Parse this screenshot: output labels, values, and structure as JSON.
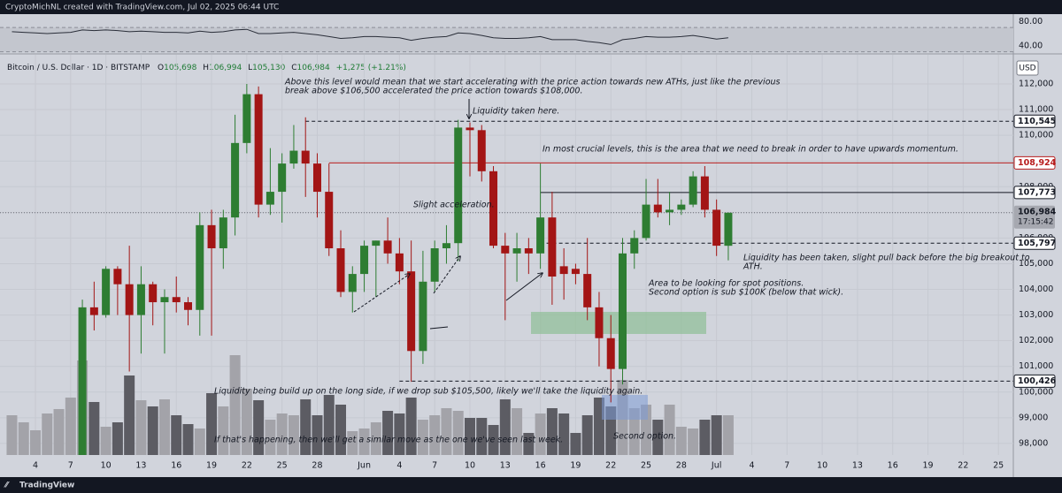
{
  "header": "CryptoMichNL created with TradingView.com, Jul 02, 2025 06:44 UTC",
  "footer": "TradingView",
  "chart_data": {
    "type": "candlestick",
    "title": "Bitcoin / U.S. Dollar · 1D · BITSTAMP",
    "ohlc_legend": [
      {
        "label": "O",
        "value": "105,698"
      },
      {
        "label": "H",
        "value": "106,994"
      },
      {
        "label": "L",
        "value": "105,130"
      },
      {
        "label": "C",
        "value": "106,984"
      }
    ],
    "change": "+1,275 (+1.21%)",
    "currency": "USD",
    "categories": [
      null,
      null,
      "4",
      null,
      null,
      "7",
      null,
      null,
      "10",
      null,
      null,
      "13",
      null,
      null,
      "16",
      null,
      null,
      "19",
      null,
      null,
      "22",
      null,
      null,
      "25",
      null,
      null,
      "28",
      null,
      null,
      null,
      "Jun",
      null,
      null,
      "4",
      null,
      null,
      "7",
      null,
      null,
      "10",
      null,
      null,
      "13",
      null,
      null,
      "16",
      null,
      null,
      "19",
      null,
      null,
      "22",
      null,
      null,
      "25",
      null,
      null,
      "28",
      null,
      null,
      "Jul",
      null
    ],
    "xticks_future": [
      "4",
      "7",
      "10",
      "13",
      "16",
      "19",
      "22",
      "25"
    ],
    "open": [
      null,
      null,
      null,
      null,
      null,
      null,
      97000,
      103300,
      103000,
      104800,
      104200,
      103000,
      104200,
      103500,
      103700,
      103500,
      103200,
      106500,
      105600,
      106800,
      109700,
      111600,
      107300,
      107800,
      108900,
      109400,
      108900,
      107800,
      105600,
      103900,
      104600,
      105700,
      105900,
      105400,
      104700,
      101600,
      104300,
      105600,
      105800,
      110300,
      110200,
      108600,
      105700,
      105400,
      105600,
      105400,
      106800,
      104900,
      104800,
      104600,
      103300,
      102100,
      100900,
      105400,
      106000,
      107300,
      107000,
      107100,
      107300,
      108400,
      107100,
      105698
    ],
    "high": [
      null,
      null,
      null,
      null,
      null,
      null,
      103600,
      104300,
      104900,
      104900,
      105700,
      104900,
      104300,
      104000,
      104500,
      103700,
      107000,
      107100,
      107100,
      110800,
      112000,
      111900,
      109500,
      109300,
      110400,
      110700,
      109300,
      108900,
      106300,
      104900,
      105900,
      105900,
      106800,
      106000,
      105900,
      105500,
      105900,
      106500,
      110600,
      110500,
      110400,
      108800,
      106200,
      106200,
      106000,
      108900,
      107800,
      105600,
      105000,
      106000,
      103900,
      103000,
      106000,
      106300,
      108300,
      108300,
      107800,
      107500,
      108600,
      108800,
      107500,
      106994
    ],
    "low": [
      null,
      null,
      null,
      null,
      null,
      null,
      96900,
      102400,
      102900,
      103000,
      100800,
      101500,
      102600,
      101500,
      103100,
      102600,
      102200,
      102200,
      104800,
      106100,
      109300,
      106800,
      106900,
      106600,
      108700,
      107600,
      106800,
      105300,
      103700,
      103100,
      103900,
      103700,
      105000,
      104200,
      100400,
      101100,
      103900,
      105000,
      105100,
      108400,
      108200,
      105600,
      102800,
      104300,
      104600,
      104800,
      103400,
      103600,
      104200,
      102800,
      101000,
      99600,
      100300,
      104800,
      105900,
      106800,
      106500,
      106900,
      107200,
      106800,
      105300,
      105130
    ],
    "close": [
      null,
      null,
      null,
      null,
      null,
      null,
      103300,
      103000,
      104800,
      104200,
      103000,
      104200,
      103500,
      103700,
      103500,
      103200,
      106500,
      105600,
      106800,
      109700,
      111600,
      107300,
      107800,
      108900,
      109400,
      108900,
      107800,
      105600,
      103900,
      104600,
      105700,
      105900,
      105400,
      104700,
      101600,
      104300,
      105600,
      105800,
      110300,
      110200,
      108600,
      105700,
      105400,
      105600,
      105400,
      106800,
      104500,
      104600,
      104600,
      103300,
      102100,
      100900,
      105400,
      106000,
      107300,
      107000,
      107100,
      107300,
      108400,
      107100,
      105700,
      106984
    ],
    "up_color": "#2e7d32",
    "down_color": "#a31515",
    "volume": [
      45,
      37,
      28,
      47,
      52,
      65,
      107,
      60,
      32,
      37,
      90,
      62,
      55,
      63,
      45,
      35,
      30,
      70,
      55,
      113,
      75,
      62,
      40,
      47,
      45,
      63,
      45,
      68,
      57,
      27,
      30,
      37,
      50,
      47,
      65,
      40,
      45,
      53,
      50,
      42,
      42,
      34,
      63,
      53,
      25,
      47,
      53,
      47,
      25,
      45,
      65,
      55,
      85,
      53,
      57,
      40,
      57,
      32,
      30,
      40,
      45,
      45
    ],
    "volume_ylim": [
      0,
      400
    ],
    "volume_up_color": "#a3a3a9",
    "volume_down_color": "#5c5c63",
    "ylim": [
      97550,
      113135
    ],
    "yticks": [
      {
        "value": 98000,
        "label": "98,000"
      },
      {
        "value": 99000,
        "label": "99,000"
      },
      {
        "value": 100000,
        "label": "100,000"
      },
      {
        "value": 101000,
        "label": "101,000"
      },
      {
        "value": 102000,
        "label": "102,000"
      },
      {
        "value": 103000,
        "label": "103,000"
      },
      {
        "value": 104000,
        "label": "104,000"
      },
      {
        "value": 105000,
        "label": "105,000"
      },
      {
        "value": 106000,
        "label": "106,000"
      },
      {
        "value": 107000,
        "label": "107,000"
      },
      {
        "value": 108000,
        "label": "108,000"
      },
      {
        "value": 109000,
        "label": "109,000"
      },
      {
        "value": 110000,
        "label": "110,000"
      },
      {
        "value": 111000,
        "label": "111,000"
      },
      {
        "value": 112000,
        "label": "112,000"
      }
    ],
    "grid": true,
    "levels": [
      {
        "value": 110545,
        "label": "110,545",
        "style": "dashed",
        "color": "#131722",
        "start": 25
      },
      {
        "value": 108924,
        "label": "108,924",
        "style": "solid",
        "color": "#b71c1c",
        "start": 27
      },
      {
        "value": 107773,
        "label": "107,773",
        "style": "solid",
        "color": "#131722",
        "start": 45
      },
      {
        "value": 105797,
        "label": "105,797",
        "style": "dashed",
        "color": "#131722",
        "start": 45
      },
      {
        "value": 100426,
        "label": "100,426",
        "style": "dashed",
        "color": "#131722",
        "start": 33
      }
    ],
    "last_price": {
      "value": 106984,
      "label": "106,984",
      "countdown": "17:15:42"
    },
    "annotations": [
      "Above this level would mean that we start accelerating with the price action towards new ATHs, just like the previous",
      "break above $106,500 accelerated the price action towards $108,000.",
      "Liquidity taken here.",
      "In most crucial levels, this is the area that we need to break in order to have upwards momentum.",
      "Slight acceleration.",
      "Liquidity has been taken, slight pull back before the big breakout to",
      "ATH.",
      "Area to be looking for spot positions.",
      "Second option is sub $100K (below that wick).",
      "Liquidity being build up on the long side, if we drop sub $105,500, likely we'll take the liquidity again.",
      "If that's happening, then we'll get a similar move as the one we've seen last week.",
      "Second option."
    ],
    "rsi": {
      "values": [
        63,
        62,
        61,
        60,
        61,
        62,
        66,
        65,
        66,
        65,
        63,
        64,
        63,
        62,
        62,
        61,
        64,
        62,
        63,
        66,
        67,
        60,
        60,
        61,
        62,
        60,
        58,
        55,
        52,
        53,
        55,
        55,
        54,
        53,
        49,
        52,
        54,
        55,
        61,
        60,
        57,
        53,
        52,
        52,
        53,
        55,
        50,
        50,
        50,
        47,
        45,
        42,
        50,
        52,
        55,
        54,
        54,
        55,
        57,
        54,
        51,
        53
      ],
      "ylim": [
        28,
        92
      ],
      "yticks": [
        {
          "value": 80,
          "label": "80.00"
        },
        {
          "value": 40,
          "label": "40.00"
        }
      ],
      "bands": [
        70,
        30
      ],
      "color": "#2a2e39"
    }
  }
}
